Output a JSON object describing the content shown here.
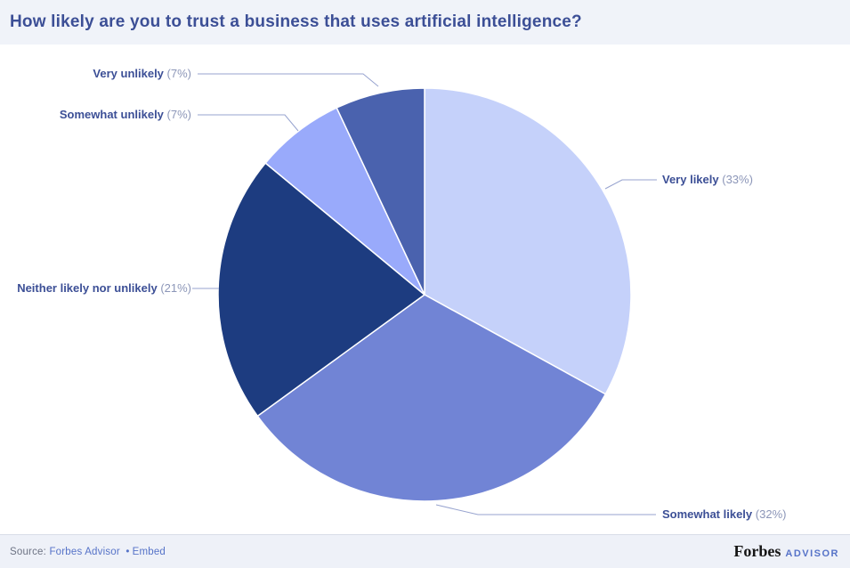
{
  "header": {
    "title": "How likely are you to trust a business that uses artificial intelligence?"
  },
  "chart_data": {
    "type": "pie",
    "title": "How likely are you to trust a business that uses artificial intelligence?",
    "start_angle_deg": -90,
    "direction": "clockwise",
    "legend_position": "outside-callout-labels",
    "slices": [
      {
        "name": "Very likely",
        "value": 33,
        "pct_label": "(33%)",
        "color": "#c5d1fa"
      },
      {
        "name": "Somewhat likely",
        "value": 32,
        "pct_label": "(32%)",
        "color": "#7184d5"
      },
      {
        "name": "Neither likely nor unlikely",
        "value": 21,
        "pct_label": "(21%)",
        "color": "#1d3c80"
      },
      {
        "name": "Somewhat unlikely",
        "value": 7,
        "pct_label": "(7%)",
        "color": "#99aafb"
      },
      {
        "name": "Very unlikely",
        "value": 7,
        "pct_label": "(7%)",
        "color": "#4a62ae"
      }
    ]
  },
  "footer": {
    "source_prefix": "Source:",
    "source_link": "Forbes Advisor",
    "separator": "•",
    "embed_link": "Embed",
    "brand_name": "Forbes",
    "brand_suffix": "ADVISOR"
  },
  "colors": {
    "title_text": "#3c4f96",
    "label_name_text": "#3c4f96",
    "label_pct_text": "#8c96b8",
    "leader_line": "#97a3cf",
    "band_background": "#f0f3f9",
    "footer_link": "#5673c8"
  }
}
